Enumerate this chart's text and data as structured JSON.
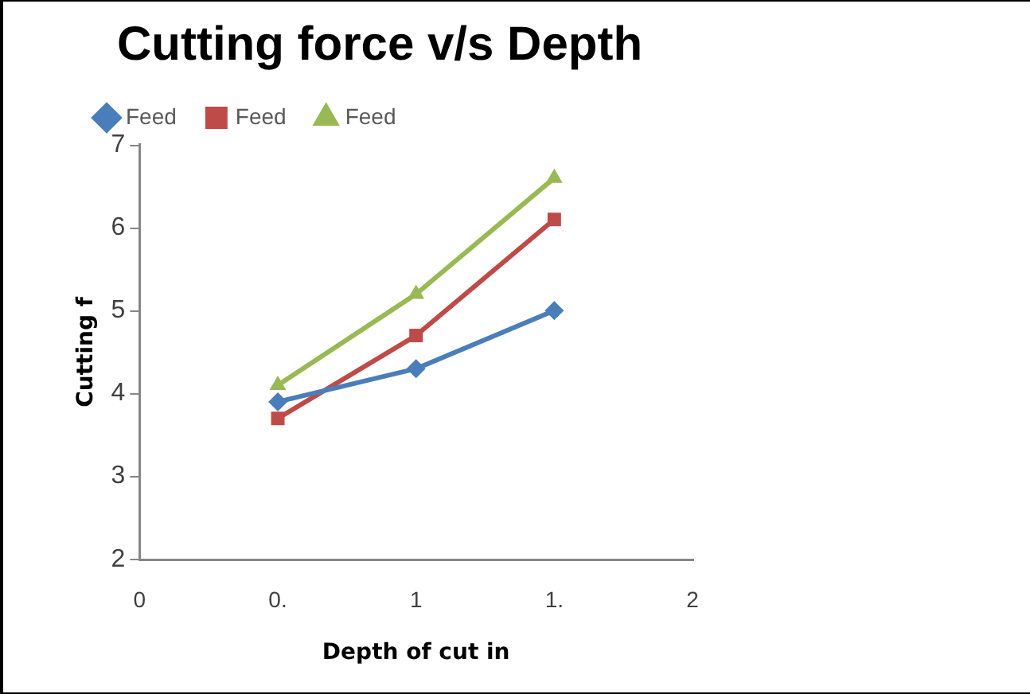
{
  "chart_data": {
    "type": "line",
    "title": "Cutting force v/s Depth",
    "xlabel": "Depth of cut in",
    "ylabel": "Cutting f",
    "x": [
      0.5,
      1,
      1.5
    ],
    "series": [
      {
        "name": "Feed",
        "color": "#4a7ebb",
        "marker": "diamond",
        "values": [
          3.9,
          4.3,
          5.0
        ]
      },
      {
        "name": "Feed",
        "color": "#be4b48",
        "marker": "square",
        "values": [
          3.7,
          4.7,
          6.1
        ]
      },
      {
        "name": "Feed",
        "color": "#98b954",
        "marker": "triangle",
        "values": [
          4.1,
          5.2,
          6.6
        ]
      }
    ],
    "xlim": [
      0,
      2
    ],
    "xticks": [
      0,
      {
        "value": 0.5,
        "label": "0."
      },
      1,
      {
        "value": 1.5,
        "label": "1."
      },
      2
    ],
    "ylim": [
      2,
      7
    ],
    "yticks": [
      2,
      3,
      4,
      5,
      6,
      7
    ],
    "grid": false,
    "legend": "top",
    "line_style": "solid"
  }
}
